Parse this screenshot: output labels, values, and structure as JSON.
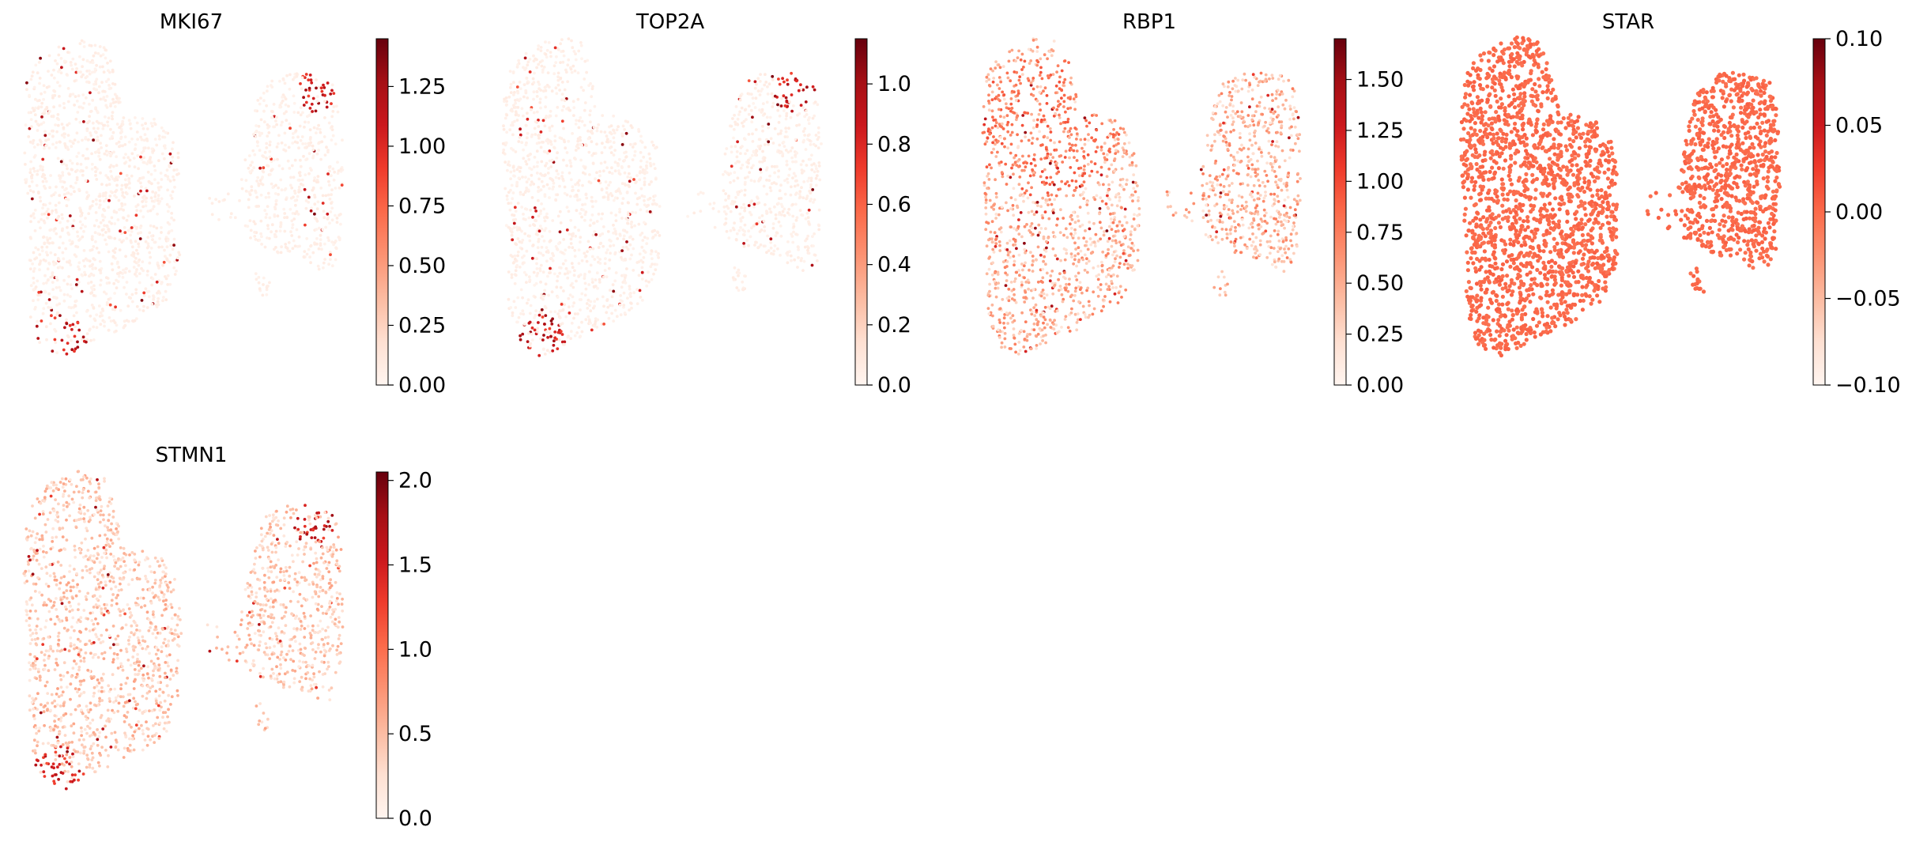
{
  "chart_data": [
    {
      "type": "scatter",
      "title": "MKI67",
      "colormap": "Reds",
      "colorbar": {
        "ticks": [
          "0.00",
          "0.25",
          "0.50",
          "0.75",
          "1.00",
          "1.25"
        ],
        "range": [
          0,
          1.45
        ]
      },
      "hotspots": [
        {
          "region": "top-of-right-lobe",
          "level": 0.85
        },
        {
          "region": "bottom-tip-of-left-lobe",
          "level": 0.85
        }
      ],
      "background_level": 0.04
    },
    {
      "type": "scatter",
      "title": "TOP2A",
      "colormap": "Reds",
      "colorbar": {
        "ticks": [
          "0.0",
          "0.2",
          "0.4",
          "0.6",
          "0.8",
          "1.0"
        ],
        "range": [
          0,
          1.15
        ]
      },
      "hotspots": [
        {
          "region": "top-of-right-lobe",
          "level": 0.85
        },
        {
          "region": "bottom-tip-of-left-lobe",
          "level": 0.85
        }
      ],
      "background_level": 0.04
    },
    {
      "type": "scatter",
      "title": "RBP1",
      "colormap": "Reds",
      "colorbar": {
        "ticks": [
          "0.00",
          "0.25",
          "0.50",
          "0.75",
          "1.00",
          "1.25",
          "1.50"
        ],
        "range": [
          0,
          1.7
        ]
      },
      "hotspots": [
        {
          "region": "upper-left-lobe",
          "level": 0.55
        }
      ],
      "background_level": 0.3
    },
    {
      "type": "scatter",
      "title": "STAR",
      "colormap": "Reds",
      "colorbar": {
        "ticks": [
          "0.10",
          "0.05",
          "0.00",
          "−0.05",
          "−0.10"
        ],
        "range": [
          -0.1,
          0.1
        ]
      },
      "hotspots": [],
      "background_level": 0.5,
      "uniform": true
    },
    {
      "type": "scatter",
      "title": "STMN1",
      "colormap": "Reds",
      "colorbar": {
        "ticks": [
          "0.0",
          "0.5",
          "1.0",
          "1.5",
          "2.0"
        ],
        "range": [
          0,
          2.05
        ]
      },
      "hotspots": [
        {
          "region": "top-of-right-lobe",
          "level": 0.85
        },
        {
          "region": "bottom-tip-of-left-lobe",
          "level": 0.8
        }
      ],
      "background_level": 0.22
    }
  ],
  "colors": {
    "reds_scale": [
      "#fff5f0",
      "#fee0d2",
      "#fcbba1",
      "#fc9272",
      "#fb6a4a",
      "#ef3b2c",
      "#cb181d",
      "#a50f15",
      "#67000d"
    ]
  }
}
